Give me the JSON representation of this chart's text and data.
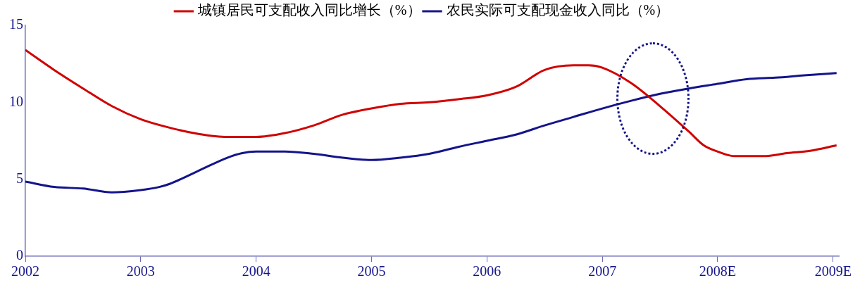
{
  "chart_data": {
    "type": "line",
    "xlim": [
      2002,
      2009.05
    ],
    "xticks": [
      2002,
      2003,
      2004,
      2005,
      2006,
      2007,
      {
        "value": 2008,
        "label": "2008E"
      },
      {
        "value": 2009,
        "label": "2009E"
      }
    ],
    "ylim": [
      0,
      15
    ],
    "yticks": [
      0,
      5,
      10,
      15
    ],
    "grid": false,
    "legend": "top",
    "marker": "none",
    "line_style": "solid",
    "series": [
      {
        "name": "城镇居民可支配收入同比增长（%）",
        "color": "#d00000",
        "x": [
          2002,
          2002.25,
          2002.5,
          2002.75,
          2003,
          2003.25,
          2003.5,
          2003.75,
          2004,
          2004.25,
          2004.5,
          2004.75,
          2005,
          2005.25,
          2005.5,
          2005.75,
          2006,
          2006.25,
          2006.5,
          2006.75,
          2006.88,
          2007,
          2007.25,
          2007.5,
          2007.75,
          2007.88,
          2008,
          2008.15,
          2008.4,
          2008.6,
          2008.8,
          2009.03
        ],
        "values": [
          13.4,
          12.1,
          10.9,
          9.75,
          8.9,
          8.35,
          7.95,
          7.75,
          7.75,
          8.0,
          8.5,
          9.2,
          9.6,
          9.9,
          10.0,
          10.2,
          10.45,
          11.0,
          12.1,
          12.4,
          12.4,
          12.25,
          11.25,
          9.75,
          8.1,
          7.2,
          6.8,
          6.5,
          6.5,
          6.7,
          6.85,
          7.2
        ]
      },
      {
        "name": "农民实际可支配现金收入同比（%）",
        "color": "#14148c",
        "x": [
          2002,
          2002.25,
          2002.5,
          2002.75,
          2003,
          2003.16,
          2003.25,
          2003.5,
          2003.75,
          2003.88,
          2004,
          2004.25,
          2004.5,
          2004.75,
          2005,
          2005.25,
          2005.5,
          2005.75,
          2006,
          2006.25,
          2006.5,
          2006.75,
          2007,
          2007.25,
          2007.5,
          2007.75,
          2008,
          2008.25,
          2008.5,
          2008.75,
          2009.03
        ],
        "values": [
          4.85,
          4.5,
          4.4,
          4.15,
          4.3,
          4.5,
          4.7,
          5.55,
          6.4,
          6.7,
          6.8,
          6.8,
          6.65,
          6.4,
          6.25,
          6.4,
          6.65,
          7.1,
          7.5,
          7.9,
          8.5,
          9.05,
          9.6,
          10.1,
          10.55,
          10.9,
          11.2,
          11.5,
          11.6,
          11.75,
          11.9
        ]
      }
    ]
  }
}
